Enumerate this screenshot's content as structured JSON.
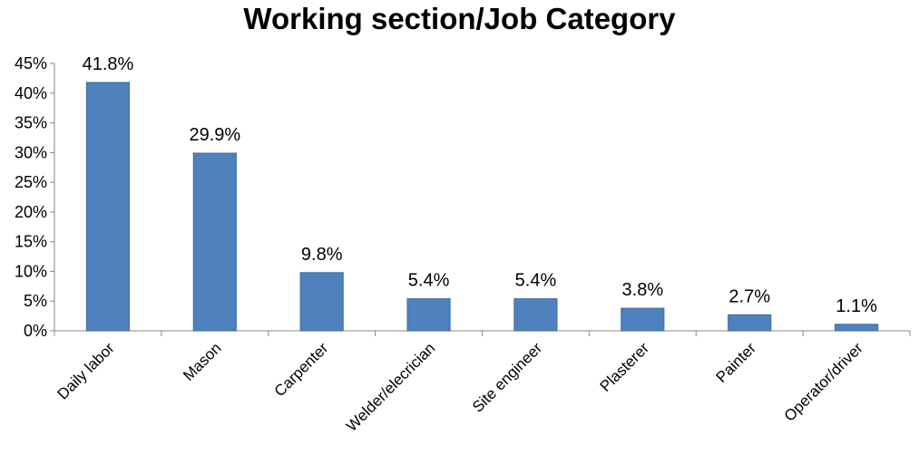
{
  "chart_data": {
    "type": "bar",
    "title": "Working section/Job Category",
    "xlabel": "",
    "ylabel": "",
    "categories": [
      "Daily labor",
      "Mason",
      "Carpenter",
      "Welder/elecrician",
      "Site engineer",
      "Plasterer",
      "Painter",
      "Operator/driver"
    ],
    "values": [
      41.8,
      29.9,
      9.8,
      5.4,
      5.4,
      3.8,
      2.7,
      1.1
    ],
    "data_labels": [
      "41.8%",
      "29.9%",
      "9.8%",
      "5.4%",
      "5.4%",
      "3.8%",
      "2.7%",
      "1.1%"
    ],
    "ylim": [
      0,
      45
    ],
    "yticks": [
      0,
      5,
      10,
      15,
      20,
      25,
      30,
      35,
      40,
      45
    ],
    "ytick_labels": [
      "0%",
      "5%",
      "10%",
      "15%",
      "20%",
      "25%",
      "30%",
      "35%",
      "40%",
      "45%"
    ],
    "grid": false,
    "legend": "none",
    "bar_color": "#4F81BD",
    "bar_edge_color": "#3A6BA5"
  }
}
